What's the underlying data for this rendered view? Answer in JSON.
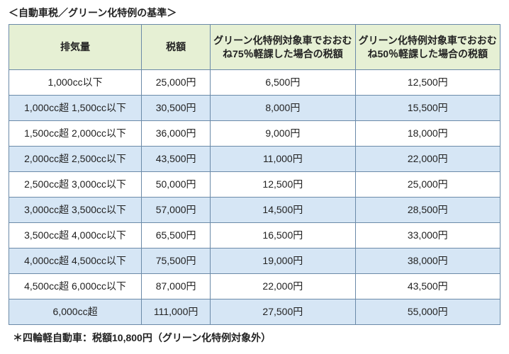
{
  "title": "＜自動車税／グリーン化特例の基準＞",
  "table": {
    "columns": [
      {
        "label": "排気量",
        "width": "27%"
      },
      {
        "label": "税額",
        "width": "14%"
      },
      {
        "label": "グリーン化特例対象車でおおむね75％軽課した場合の税額",
        "width": "29.5%"
      },
      {
        "label": "グリーン化特例対象車でおおむね50％軽課した場合の税額",
        "width": "29.5%"
      }
    ],
    "rows": [
      [
        "1,000cc以下",
        "25,000円",
        "6,500円",
        "12,500円"
      ],
      [
        "1,000cc超 1,500cc以下",
        "30,500円",
        "8,000円",
        "15,500円"
      ],
      [
        "1,500cc超 2,000cc以下",
        "36,000円",
        "9,000円",
        "18,000円"
      ],
      [
        "2,000cc超 2,500cc以下",
        "43,500円",
        "11,000円",
        "22,000円"
      ],
      [
        "2,500cc超 3,000cc以下",
        "50,000円",
        "12,500円",
        "25,000円"
      ],
      [
        "3,000cc超 3,500cc以下",
        "57,000円",
        "14,500円",
        "28,500円"
      ],
      [
        "3,500cc超 4,000cc以下",
        "65,500円",
        "16,500円",
        "33,000円"
      ],
      [
        "4,000cc超 4,500cc以下",
        "75,500円",
        "19,000円",
        "38,000円"
      ],
      [
        "4,500cc超 6,000cc以下",
        "87,000円",
        "22,000円",
        "43,500円"
      ],
      [
        "6,000cc超",
        "111,000円",
        "27,500円",
        "55,000円"
      ]
    ],
    "header_bg": "#e6f0d4",
    "row_odd_bg": "#ffffff",
    "row_even_bg": "#d6e6f5",
    "border_color": "#6b8aa8",
    "header_fontsize": 14,
    "cell_fontsize": 14,
    "header_fontweight": "bold"
  },
  "footnote": "＊四輪軽自動車：税額10,800円（グリーン化特例対象外）"
}
